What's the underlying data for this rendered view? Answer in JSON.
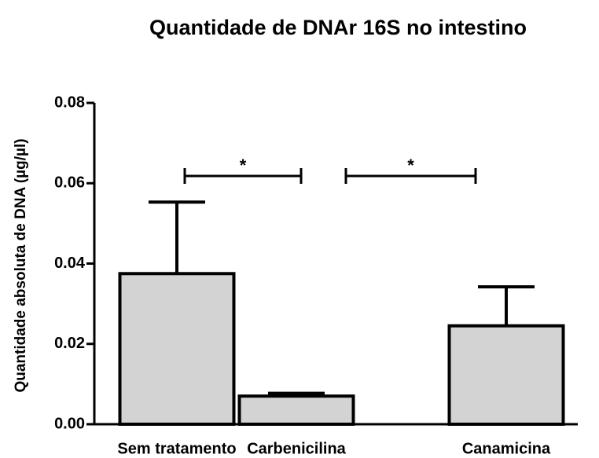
{
  "chart_data": {
    "type": "bar",
    "title": "Quantidade de DNAr 16S no intestino",
    "ylabel": "Quantidade absoluta de DNA (µg/µl)",
    "categories": [
      "Sem tratamento",
      "Carbenicilina",
      "Canamicina"
    ],
    "values": [
      0.0375,
      0.007,
      0.0245
    ],
    "errors": [
      0.0178,
      0.0007,
      0.0097
    ],
    "color": "#d3d3d3",
    "ylim": [
      0,
      0.08
    ],
    "yticks": [
      {
        "value": 0,
        "label": "0.00"
      },
      0.02,
      0.04,
      0.06,
      0.08
    ],
    "annotations": [
      {
        "text": "*"
      },
      {
        "text": "*"
      }
    ]
  }
}
